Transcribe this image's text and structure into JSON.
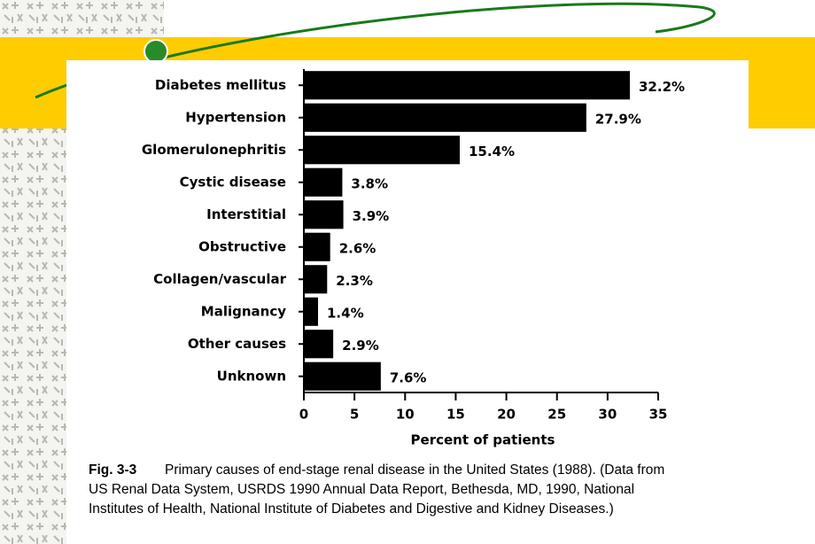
{
  "chart_data": {
    "type": "hbar",
    "x_label": "Percent of patients",
    "categories": [
      "Diabetes mellitus",
      "Hypertension",
      "Glomerulonephritis",
      "Cystic disease",
      "Interstitial",
      "Obstructive",
      "Collagen/vascular",
      "Malignancy",
      "Other causes",
      "Unknown"
    ],
    "values": [
      32.2,
      27.9,
      15.4,
      3.8,
      3.9,
      2.6,
      2.3,
      1.4,
      2.9,
      7.6
    ],
    "value_labels": [
      "32.2%",
      "27.9%",
      "15.4%",
      "3.8%",
      "3.9%",
      "2.6%",
      "2.3%",
      "1.4%",
      "2.9%",
      "7.6%"
    ],
    "color": "#000000",
    "xlim": [
      0,
      35
    ],
    "xticks": [
      0,
      5,
      10,
      15,
      20,
      25,
      30,
      35
    ],
    "grid": false,
    "caption_label": "Fig. 3-3",
    "caption_lines": [
      "Primary causes of end-stage renal disease in the United States (1988). (Data from",
      "US Renal Data System, USRDS 1990 Annual Data Report, Bethesda, MD, 1990, National",
      "Institutes of Health, National Institute of Diabetes and Digestive and Kidney Diseases.)"
    ]
  }
}
